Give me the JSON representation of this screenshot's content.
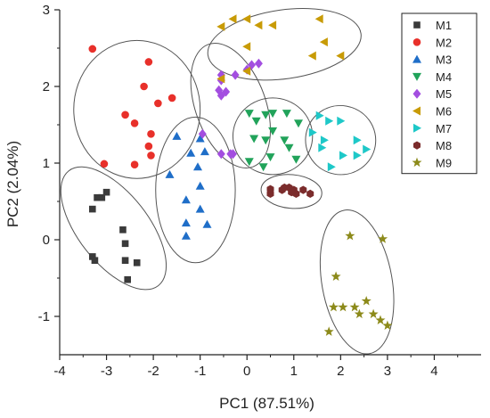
{
  "chart_data": {
    "type": "scatter",
    "title": "",
    "xlabel": "PC1  (87.51%)",
    "ylabel": "PC2  (2.04%)",
    "xlim": [
      -4,
      5
    ],
    "ylim": [
      -1.5,
      3
    ],
    "xticks": [
      -4,
      -3,
      -2,
      -1,
      0,
      1,
      2,
      3,
      4
    ],
    "yticks": [
      -1,
      0,
      1,
      2,
      3
    ],
    "grid": false,
    "legend_position": "top-right",
    "series": [
      {
        "name": "M1",
        "marker": "square",
        "color": "#3a3a3a",
        "points": [
          [
            -3.3,
            0.4
          ],
          [
            -3.2,
            0.55
          ],
          [
            -3.1,
            0.55
          ],
          [
            -3.0,
            0.62
          ],
          [
            -3.3,
            -0.22
          ],
          [
            -3.25,
            -0.27
          ],
          [
            -2.65,
            0.13
          ],
          [
            -2.6,
            -0.05
          ],
          [
            -2.6,
            -0.27
          ],
          [
            -2.55,
            -0.52
          ],
          [
            -2.35,
            -0.3
          ]
        ]
      },
      {
        "name": "M2",
        "marker": "circle",
        "color": "#e8302a",
        "points": [
          [
            -3.3,
            2.49
          ],
          [
            -2.1,
            2.32
          ],
          [
            -2.2,
            2.0
          ],
          [
            -2.6,
            1.63
          ],
          [
            -2.4,
            1.52
          ],
          [
            -1.9,
            1.78
          ],
          [
            -1.6,
            1.85
          ],
          [
            -2.05,
            1.38
          ],
          [
            -2.1,
            1.22
          ],
          [
            -2.4,
            0.98
          ],
          [
            -3.05,
            0.99
          ],
          [
            -2.05,
            1.1
          ]
        ]
      },
      {
        "name": "M3",
        "marker": "triangle-up",
        "color": "#1f6ec8",
        "points": [
          [
            -1.5,
            1.35
          ],
          [
            -1.0,
            1.32
          ],
          [
            -1.2,
            1.13
          ],
          [
            -0.9,
            1.15
          ],
          [
            -1.65,
            0.85
          ],
          [
            -1.05,
            0.95
          ],
          [
            -1.0,
            0.7
          ],
          [
            -1.3,
            0.52
          ],
          [
            -1.0,
            0.4
          ],
          [
            -1.3,
            0.22
          ],
          [
            -0.85,
            0.2
          ],
          [
            -1.3,
            0.05
          ]
        ]
      },
      {
        "name": "M4",
        "marker": "triangle-down",
        "color": "#21a35a",
        "points": [
          [
            0.05,
            1.65
          ],
          [
            0.2,
            1.55
          ],
          [
            0.4,
            1.63
          ],
          [
            0.55,
            1.65
          ],
          [
            0.85,
            1.65
          ],
          [
            1.1,
            1.52
          ],
          [
            0.55,
            1.42
          ],
          [
            0.15,
            1.32
          ],
          [
            0.4,
            1.3
          ],
          [
            0.8,
            1.3
          ],
          [
            0.9,
            1.2
          ],
          [
            1.05,
            1.05
          ],
          [
            0.5,
            1.08
          ],
          [
            0.05,
            1.02
          ],
          [
            0.35,
            0.95
          ]
        ]
      },
      {
        "name": "M5",
        "marker": "diamond",
        "color": "#a34ee0",
        "points": [
          [
            0.25,
            2.3
          ],
          [
            0.1,
            2.28
          ],
          [
            0.0,
            2.22
          ],
          [
            -0.25,
            2.15
          ],
          [
            -0.55,
            2.15
          ],
          [
            -0.55,
            2.08
          ],
          [
            -0.6,
            1.95
          ],
          [
            -0.55,
            1.88
          ],
          [
            -0.45,
            1.93
          ],
          [
            -0.95,
            1.38
          ],
          [
            -0.55,
            1.12
          ],
          [
            -0.35,
            1.12
          ],
          [
            -0.3,
            1.12
          ]
        ]
      },
      {
        "name": "M6",
        "marker": "triangle-left",
        "color": "#c89b06",
        "points": [
          [
            -0.55,
            2.78
          ],
          [
            -0.3,
            2.88
          ],
          [
            0.0,
            2.88
          ],
          [
            0.25,
            2.8
          ],
          [
            0.55,
            2.8
          ],
          [
            1.55,
            2.88
          ],
          [
            1.65,
            2.58
          ],
          [
            0.0,
            2.52
          ],
          [
            1.4,
            2.4
          ],
          [
            2.0,
            2.4
          ],
          [
            -0.55,
            2.1
          ],
          [
            0.0,
            2.2
          ]
        ]
      },
      {
        "name": "M7",
        "marker": "triangle-right",
        "color": "#1ec8c8",
        "points": [
          [
            1.55,
            1.62
          ],
          [
            1.75,
            1.55
          ],
          [
            2.0,
            1.55
          ],
          [
            1.4,
            1.4
          ],
          [
            1.65,
            1.3
          ],
          [
            1.6,
            1.2
          ],
          [
            2.35,
            1.3
          ],
          [
            2.05,
            1.1
          ],
          [
            2.35,
            1.1
          ],
          [
            2.55,
            1.18
          ],
          [
            1.8,
            0.95
          ]
        ]
      },
      {
        "name": "M8",
        "marker": "hexagon",
        "color": "#7b2c2c",
        "points": [
          [
            0.5,
            0.66
          ],
          [
            0.5,
            0.6
          ],
          [
            0.75,
            0.65
          ],
          [
            0.8,
            0.68
          ],
          [
            0.9,
            0.68
          ],
          [
            1.0,
            0.65
          ],
          [
            1.05,
            0.6
          ],
          [
            1.2,
            0.65
          ],
          [
            1.35,
            0.6
          ],
          [
            0.95,
            0.62
          ]
        ]
      },
      {
        "name": "M9",
        "marker": "star",
        "color": "#8c8a1a",
        "points": [
          [
            2.2,
            0.05
          ],
          [
            2.9,
            0.01
          ],
          [
            1.9,
            -0.48
          ],
          [
            2.55,
            -0.8
          ],
          [
            2.3,
            -0.88
          ],
          [
            2.05,
            -0.88
          ],
          [
            1.85,
            -0.88
          ],
          [
            2.4,
            -0.97
          ],
          [
            2.7,
            -0.97
          ],
          [
            2.85,
            -1.05
          ],
          [
            3.0,
            -1.12
          ],
          [
            1.75,
            -1.2
          ]
        ]
      }
    ],
    "ellipses": [
      {
        "group": "M1",
        "center": [
          -2.85,
          0.15
        ],
        "rx": 0.75,
        "ry": 0.95,
        "angle_deg": 38
      },
      {
        "group": "M2",
        "center": [
          -2.35,
          1.7
        ],
        "rx": 1.35,
        "ry": 0.9,
        "angle_deg": 0
      },
      {
        "group": "M3",
        "center": [
          -1.1,
          0.65
        ],
        "rx": 0.85,
        "ry": 0.95,
        "angle_deg": 0
      },
      {
        "group": "M4",
        "center": [
          0.55,
          1.35
        ],
        "rx": 0.85,
        "ry": 0.5,
        "angle_deg": 0
      },
      {
        "group": "M5",
        "center": [
          -0.35,
          1.75
        ],
        "rx": 0.75,
        "ry": 0.85,
        "angle_deg": 20
      },
      {
        "group": "M6",
        "center": [
          0.8,
          2.55
        ],
        "rx": 1.65,
        "ry": 0.45,
        "angle_deg": 8
      },
      {
        "group": "M7",
        "center": [
          2.0,
          1.3
        ],
        "rx": 0.75,
        "ry": 0.45,
        "angle_deg": -10
      },
      {
        "group": "M8",
        "center": [
          0.95,
          0.63
        ],
        "rx": 0.65,
        "ry": 0.22,
        "angle_deg": -5
      },
      {
        "group": "M9",
        "center": [
          2.35,
          -0.55
        ],
        "rx": 0.75,
        "ry": 0.95,
        "angle_deg": 10
      }
    ]
  }
}
